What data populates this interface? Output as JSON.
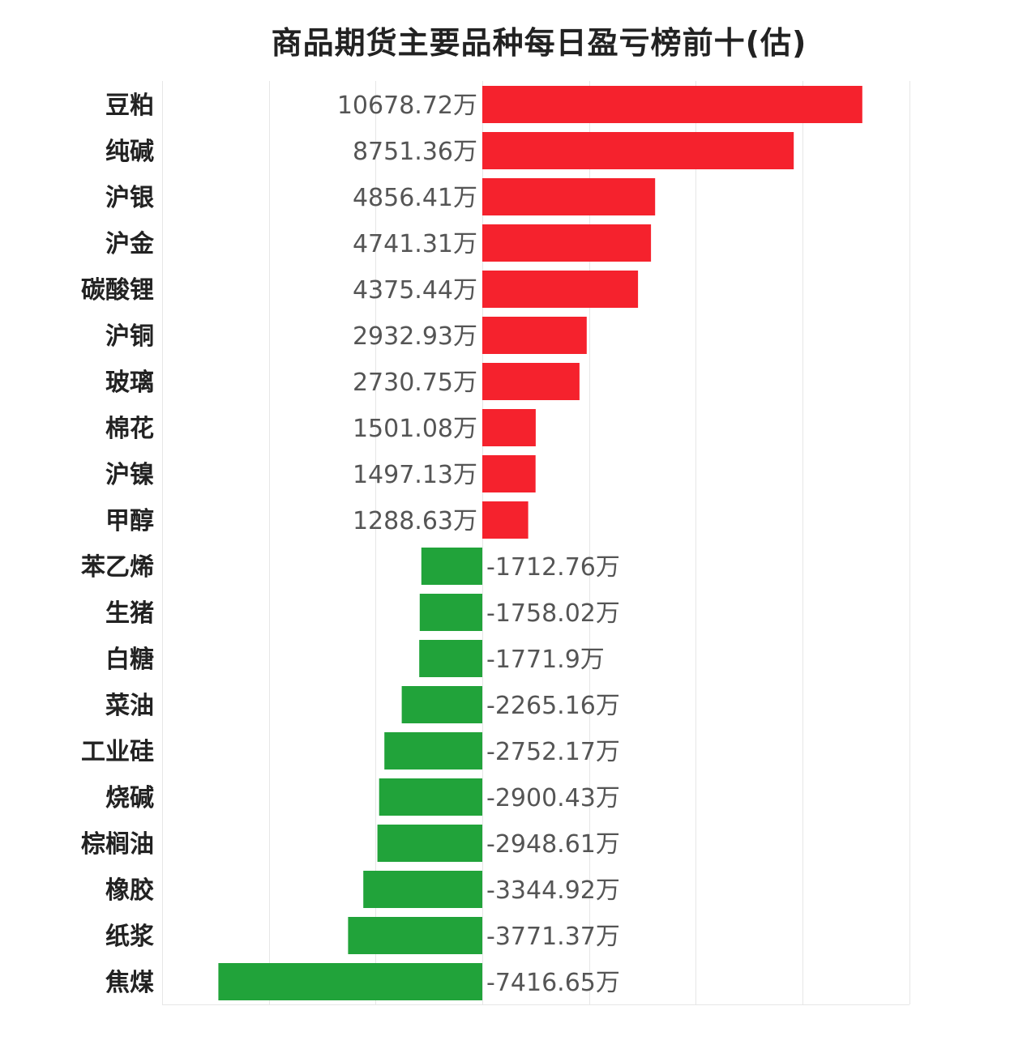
{
  "chart_data": {
    "type": "bar",
    "orientation": "horizontal",
    "title": "商品期货主要品种每日盈亏榜前十(估)",
    "xlabel": "",
    "ylabel": "",
    "value_suffix": "万",
    "xlim": [
      -9000,
      10000
    ],
    "grid": true,
    "categories": [
      "豆粕",
      "纯碱",
      "沪银",
      "沪金",
      "碳酸锂",
      "沪铜",
      "玻璃",
      "棉花",
      "沪镍",
      "甲醇",
      "苯乙烯",
      "生猪",
      "白糖",
      "菜油",
      "工业硅",
      "烧碱",
      "棕榈油",
      "橡胶",
      "纸浆",
      "焦煤"
    ],
    "values": [
      10678.72,
      8751.36,
      4856.41,
      4741.31,
      4375.44,
      2932.93,
      2730.75,
      1501.08,
      1497.13,
      1288.63,
      -1712.76,
      -1758.02,
      -1771.9,
      -2265.16,
      -2752.17,
      -2900.43,
      -2948.61,
      -3344.92,
      -3771.37,
      -7416.65
    ],
    "colors": {
      "positive": "#f5222d",
      "negative": "#21a33a"
    }
  }
}
